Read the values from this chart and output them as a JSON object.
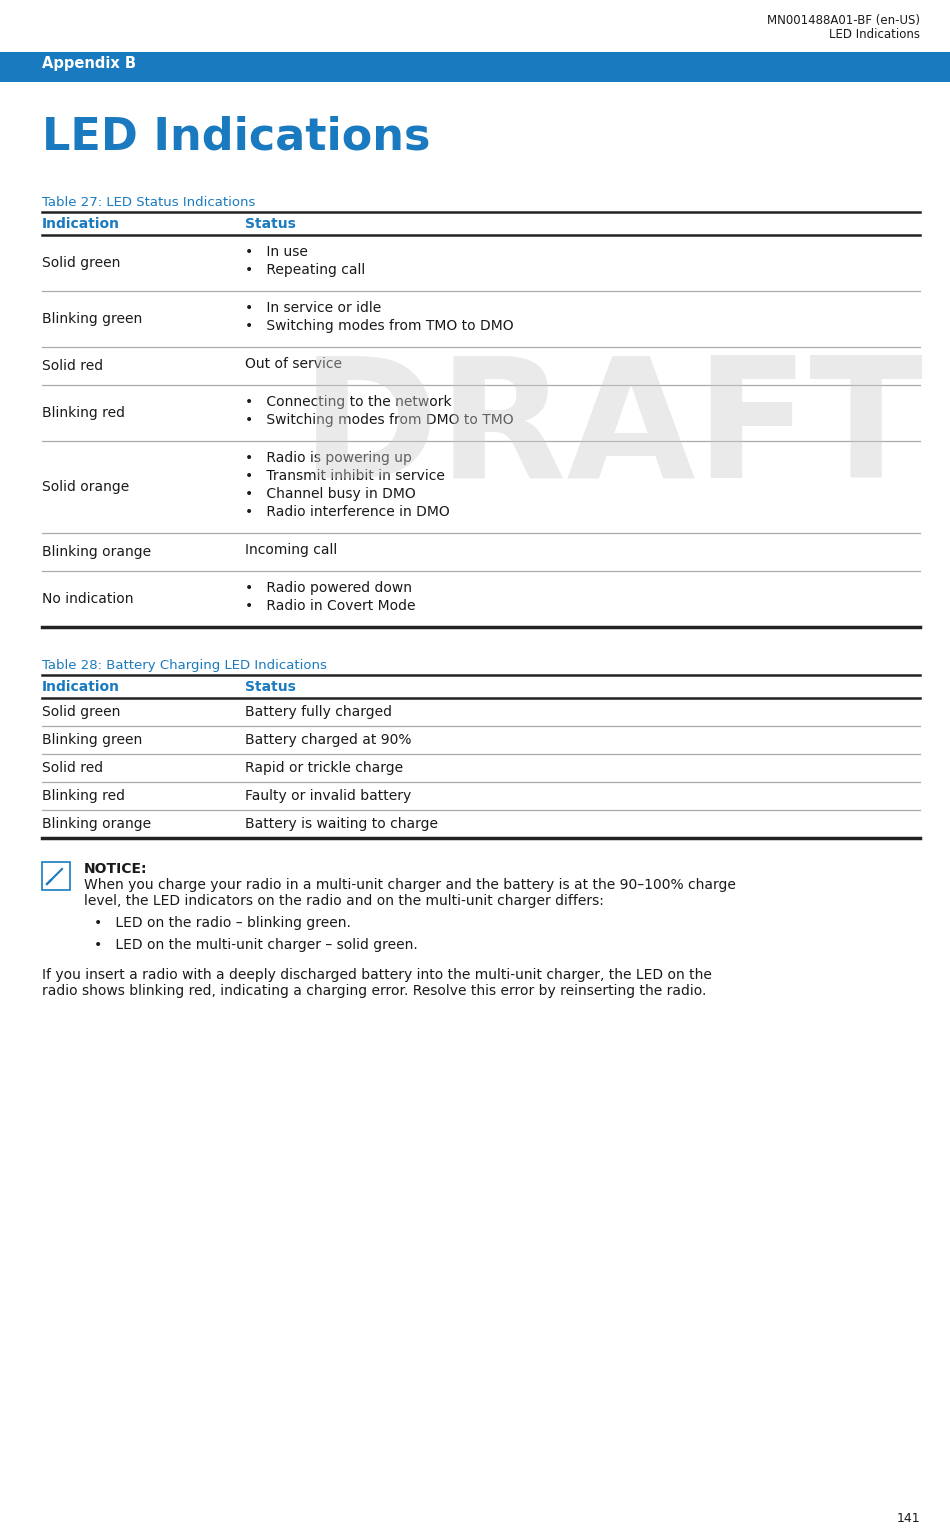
{
  "header_line1": "MN001488A01-BF (en-US)",
  "header_line2": "LED Indications",
  "appendix_label": "Appendix B",
  "appendix_bg": "#1a7abf",
  "appendix_text_color": "#ffffff",
  "page_title": "LED Indications",
  "page_title_color": "#1a7abf",
  "table27_title": "Table 27: LED Status Indications",
  "table27_title_color": "#1a7abf",
  "table27_col1_header": "Indication",
  "table27_col2_header": "Status",
  "table27_header_color": "#1a7abf",
  "table27_rows": [
    {
      "indication": "Solid green",
      "status_lines": [
        "•   In use",
        "•   Repeating call"
      ]
    },
    {
      "indication": "Blinking green",
      "status_lines": [
        "•   In service or idle",
        "•   Switching modes from TMO to DMO"
      ]
    },
    {
      "indication": "Solid red",
      "status_lines": [
        "Out of service"
      ]
    },
    {
      "indication": "Blinking red",
      "status_lines": [
        "•   Connecting to the network",
        "•   Switching modes from DMO to TMO"
      ]
    },
    {
      "indication": "Solid orange",
      "status_lines": [
        "•   Radio is powering up",
        "•   Transmit inhibit in service",
        "•   Channel busy in DMO",
        "•   Radio interference in DMO"
      ]
    },
    {
      "indication": "Blinking orange",
      "status_lines": [
        "Incoming call"
      ]
    },
    {
      "indication": "No indication",
      "status_lines": [
        "•   Radio powered down",
        "•   Radio in Covert Mode"
      ]
    }
  ],
  "table28_title": "Table 28: Battery Charging LED Indications",
  "table28_title_color": "#1a7abf",
  "table28_col1_header": "Indication",
  "table28_col2_header": "Status",
  "table28_header_color": "#1a7abf",
  "table28_rows": [
    {
      "indication": "Solid green",
      "status": "Battery fully charged"
    },
    {
      "indication": "Blinking green",
      "status": "Battery charged at 90%"
    },
    {
      "indication": "Solid red",
      "status": "Rapid or trickle charge"
    },
    {
      "indication": "Blinking red",
      "status": "Faulty or invalid battery"
    },
    {
      "indication": "Blinking orange",
      "status": "Battery is waiting to charge"
    }
  ],
  "notice_title": "NOTICE:",
  "notice_body1": "When you charge your radio in a multi-unit charger and the battery is at the 90–100% charge",
  "notice_body2": "level, the LED indicators on the radio and on the multi-unit charger differs:",
  "notice_bullets": [
    "•   LED on the radio – blinking green.",
    "•   LED on the multi-unit charger – solid green."
  ],
  "notice_footer1": "If you insert a radio with a deeply discharged battery into the multi-unit charger, the LED on the",
  "notice_footer2": "radio shows blinking red, indicating a charging error. Resolve this error by reinserting the radio.",
  "page_number": "141",
  "draft_watermark": "DRAFT",
  "bg_color": "#ffffff",
  "text_color": "#1a1a1a",
  "line_color_light": "#aaaaaa",
  "line_color_dark": "#222222",
  "blue_color": "#1a7abf"
}
